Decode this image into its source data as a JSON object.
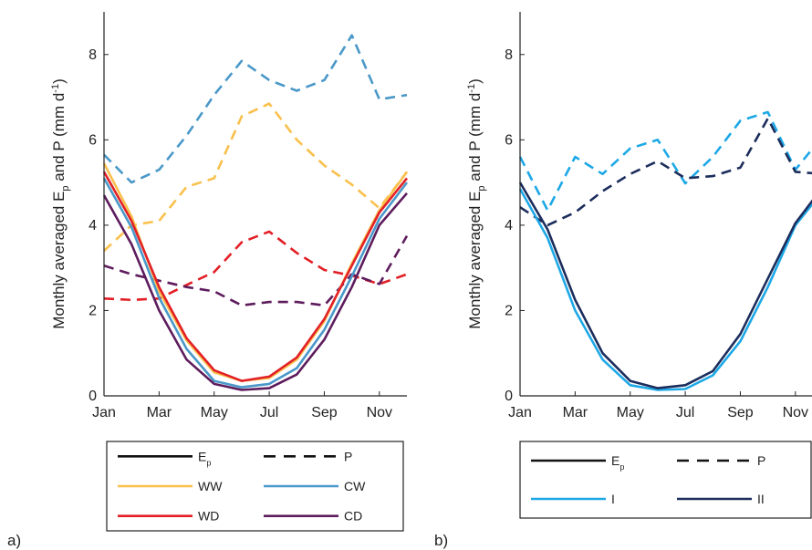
{
  "chart_data": [
    {
      "type": "line",
      "panel_label": "a)",
      "ylabel": "Monthly averaged E",
      "ylabel_sub": "p",
      "ylabel_rest": " and P (mm d",
      "ylabel_sup": "-1",
      "ylabel_end": ")",
      "ylim": [
        0,
        9
      ],
      "yticks": [
        "0",
        "2",
        "4",
        "6",
        "8"
      ],
      "xticks": [
        "Jan",
        "Mar",
        "May",
        "Jul",
        "Sep",
        "Nov"
      ],
      "x": [
        1,
        2,
        3,
        4,
        5,
        6,
        7,
        8,
        9,
        10,
        11,
        12
      ],
      "legend": {
        "position": "below",
        "entries": [
          {
            "label": "E",
            "sub": "p",
            "color": "#111111",
            "dash": false
          },
          {
            "label": "P",
            "color": "#111111",
            "dash": true
          },
          {
            "label": "WW",
            "color": "#f9c04c",
            "dash": false
          },
          {
            "label": "CW",
            "color": "#4a98c9",
            "dash": false
          },
          {
            "label": "WD",
            "color": "#e21f26",
            "dash": false
          },
          {
            "label": "CD",
            "color": "#5e1c5d",
            "dash": false
          }
        ]
      },
      "series": [
        {
          "color": "#4a98c9",
          "dash": true,
          "values": [
            5.65,
            5.0,
            5.3,
            6.1,
            7.05,
            7.85,
            7.4,
            7.15,
            7.4,
            8.45,
            6.95,
            7.05
          ]
        },
        {
          "color": "#f9c04c",
          "dash": true,
          "values": [
            3.4,
            4.0,
            4.1,
            4.9,
            5.1,
            6.55,
            6.85,
            6.0,
            5.4,
            4.95,
            4.4,
            5.25
          ]
        },
        {
          "color": "#e21f26",
          "dash": true,
          "values": [
            2.28,
            2.25,
            2.28,
            2.6,
            2.9,
            3.6,
            3.85,
            3.35,
            2.95,
            2.82,
            2.62,
            2.85
          ]
        },
        {
          "color": "#5e1c5d",
          "dash": true,
          "values": [
            3.05,
            2.85,
            2.7,
            2.55,
            2.45,
            2.12,
            2.2,
            2.2,
            2.12,
            2.85,
            2.62,
            3.75
          ]
        },
        {
          "color": "#f9c04c",
          "dash": false,
          "values": [
            5.45,
            4.2,
            2.45,
            1.3,
            0.55,
            0.35,
            0.42,
            0.85,
            1.75,
            3.1,
            4.35,
            5.25
          ]
        },
        {
          "color": "#e21f26",
          "dash": false,
          "values": [
            5.25,
            4.1,
            2.55,
            1.35,
            0.6,
            0.35,
            0.45,
            0.9,
            1.8,
            3.05,
            4.3,
            5.1
          ]
        },
        {
          "color": "#4a98c9",
          "dash": false,
          "values": [
            5.1,
            3.95,
            2.3,
            1.1,
            0.35,
            0.2,
            0.28,
            0.65,
            1.55,
            2.8,
            4.15,
            5.0
          ]
        },
        {
          "color": "#5e1c5d",
          "dash": false,
          "values": [
            4.7,
            3.55,
            2.0,
            0.85,
            0.28,
            0.14,
            0.18,
            0.5,
            1.32,
            2.55,
            4.0,
            4.75
          ]
        }
      ]
    },
    {
      "type": "line",
      "panel_label": "b)",
      "ylabel": "Monthly averaged E",
      "ylabel_sub": "p",
      "ylabel_rest": " and P (mm d",
      "ylabel_sup": "-1",
      "ylabel_end": ")",
      "ylim": [
        0,
        9
      ],
      "yticks": [
        "0",
        "2",
        "4",
        "6",
        "8"
      ],
      "xticks": [
        "Jan",
        "Mar",
        "May",
        "Jul",
        "Sep",
        "Nov"
      ],
      "x": [
        1,
        2,
        3,
        4,
        5,
        6,
        7,
        8,
        9,
        10,
        11,
        12
      ],
      "legend": {
        "position": "below",
        "entries": [
          {
            "label": "E",
            "sub": "p",
            "color": "#111111",
            "dash": false
          },
          {
            "label": "P",
            "color": "#111111",
            "dash": true
          },
          {
            "label": "I",
            "color": "#1da8e6",
            "dash": false
          },
          {
            "label": "II",
            "color": "#1c2d5c",
            "dash": false
          }
        ]
      },
      "series": [
        {
          "color": "#1da8e6",
          "dash": true,
          "values": [
            5.6,
            4.35,
            5.6,
            5.2,
            5.8,
            6.0,
            4.98,
            5.6,
            6.45,
            6.65,
            5.3,
            6.1
          ]
        },
        {
          "color": "#1c2d5c",
          "dash": true,
          "values": [
            4.42,
            4.0,
            4.3,
            4.8,
            5.2,
            5.5,
            5.1,
            5.15,
            5.35,
            6.5,
            5.25,
            5.2
          ]
        },
        {
          "color": "#1da8e6",
          "dash": false,
          "values": [
            4.85,
            3.7,
            2.0,
            0.85,
            0.25,
            0.14,
            0.16,
            0.48,
            1.28,
            2.55,
            4.0,
            4.8
          ]
        },
        {
          "color": "#1c2d5c",
          "dash": false,
          "values": [
            5.0,
            3.9,
            2.25,
            1.0,
            0.35,
            0.18,
            0.25,
            0.58,
            1.45,
            2.75,
            4.05,
            4.9
          ]
        }
      ]
    }
  ]
}
